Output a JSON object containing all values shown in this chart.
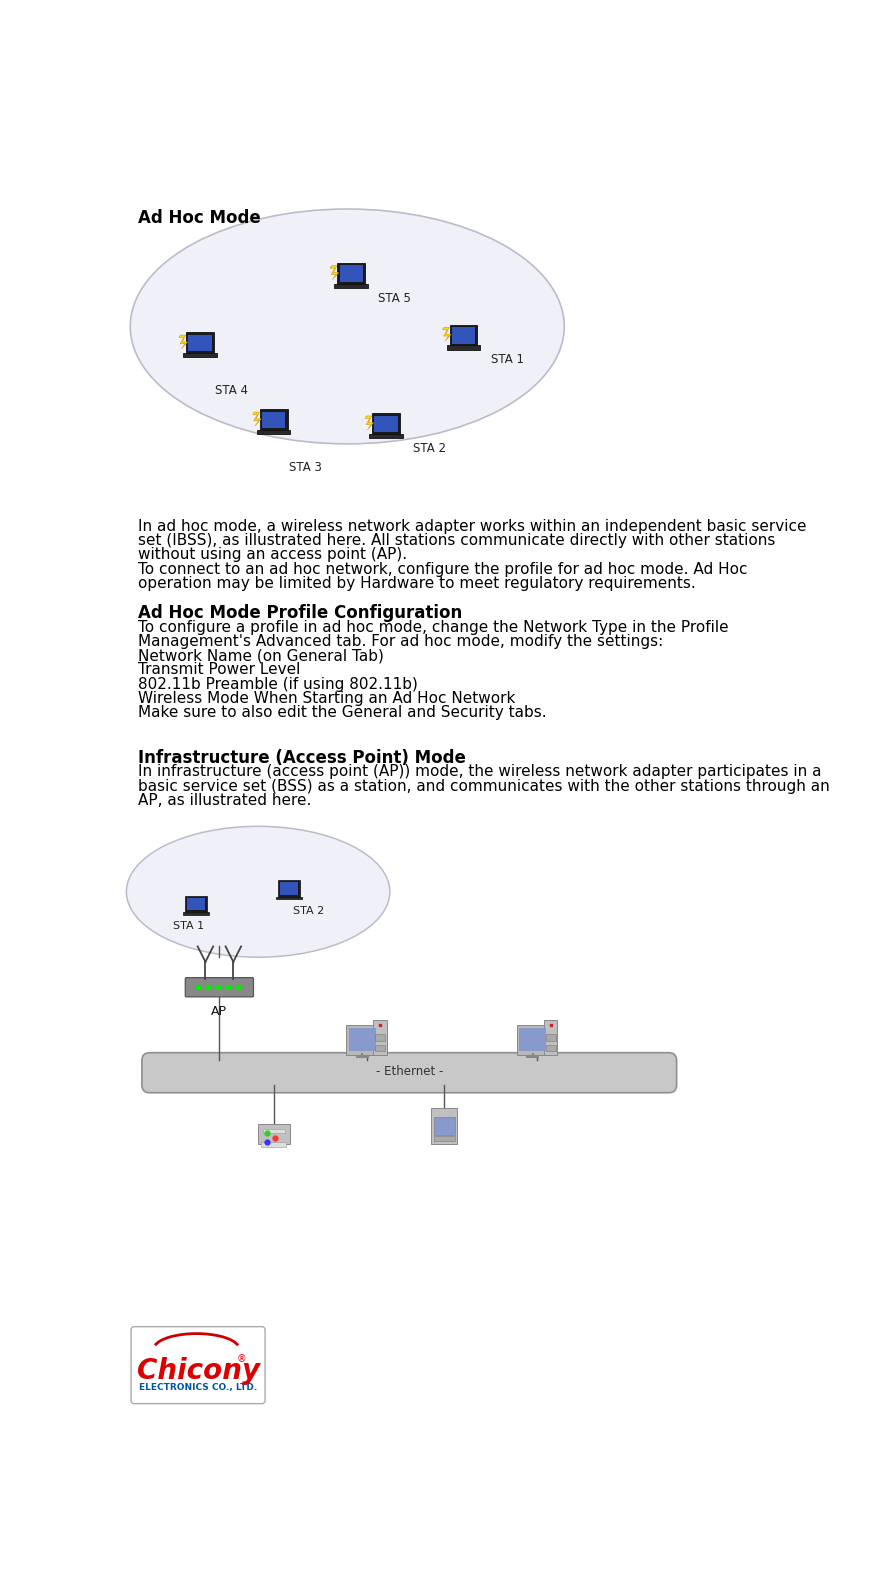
{
  "title1": "Ad Hoc Mode",
  "title2": "Ad Hoc Mode Profile Configuration",
  "title3": "Infrastructure (Access Point) Mode",
  "para1_line1": "In ad hoc mode, a wireless network adapter works within an independent basic service",
  "para1_line2": "set (IBSS), as illustrated here. All stations communicate directly with other stations",
  "para1_line3": "without using an access point (AP).",
  "para1_line4": "To connect to an ad hoc network, configure the profile for ad hoc mode. Ad Hoc",
  "para1_line5": "operation may be limited by Hardware to meet regulatory requirements.",
  "para2_line1": "To configure a profile in ad hoc mode, change the Network Type in the Profile",
  "para2_line2": "Management's Advanced tab. For ad hoc mode, modify the settings:",
  "para2_line3": "Network Name (on General Tab)",
  "para2_line4": "Transmit Power Level",
  "para2_line5": "802.11b Preamble (if using 802.11b)",
  "para2_line6": "Wireless Mode When Starting an Ad Hoc Network",
  "para2_line7": "Make sure to also edit the General and Security tabs.",
  "para3_line1": "In infrastructure (access point (AP)) mode, the wireless network adapter participates in a",
  "para3_line2": "basic service set (BSS) as a station, and communicates with the other stations through an",
  "para3_line3": "AP, as illustrated here.",
  "bg_color": "#ffffff",
  "text_color": "#000000",
  "font_size": 11.0,
  "title_font_size": 12.0,
  "chicony_red": "#dd0000",
  "chicony_blue": "#0055aa",
  "ellipse1_color": "#e8e8f0",
  "ellipse1_edge": "#aaaabb",
  "eth_color": "#c0c0c0",
  "eth_edge": "#909090"
}
